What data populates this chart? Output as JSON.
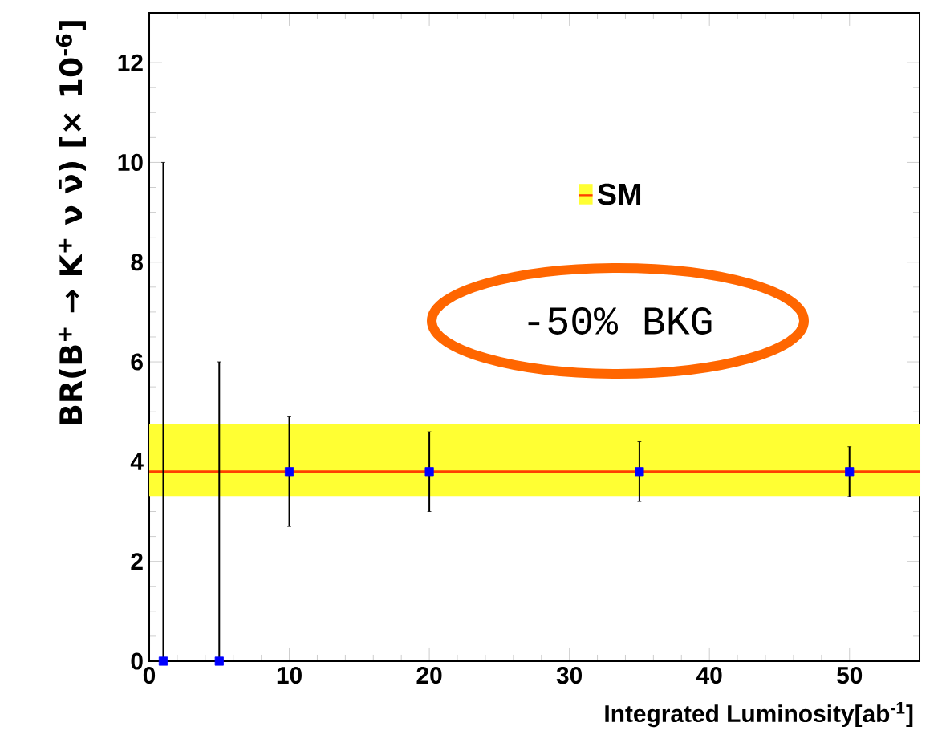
{
  "chart_data": {
    "type": "scatter",
    "xlabel": "Integrated Luminosity[ab$^{-1}$]",
    "ylabel": "BR(B$^{+}$ → K$^{+}$ ν ν̄) [× 10$^{-6}$]",
    "x": [
      1,
      5,
      10,
      20,
      35,
      50
    ],
    "series": [
      {
        "color": "#0000ff",
        "values": [
          0,
          0,
          3.8,
          3.8,
          3.8,
          3.8
        ],
        "errors": [
          [
            0,
            10
          ],
          [
            0,
            6
          ],
          1.1,
          0.8,
          0.6,
          0.5
        ]
      }
    ],
    "marker": "square",
    "xlim": [
      0,
      55
    ],
    "xticks": [
      0,
      10,
      20,
      30,
      40,
      50
    ],
    "ylim": [
      0,
      13
    ],
    "yticks": [
      0,
      2,
      4,
      6,
      8,
      10,
      12
    ],
    "bands": [
      {
        "axis": "y",
        "from": 3.31,
        "to": 4.75,
        "label": "SM",
        "color": "#ffff33"
      }
    ],
    "ref_lines": [
      {
        "axis": "y",
        "value": 3.8,
        "color": "#ff4000"
      }
    ],
    "legend": "top right",
    "annotations": [
      "-50% BKG"
    ]
  }
}
